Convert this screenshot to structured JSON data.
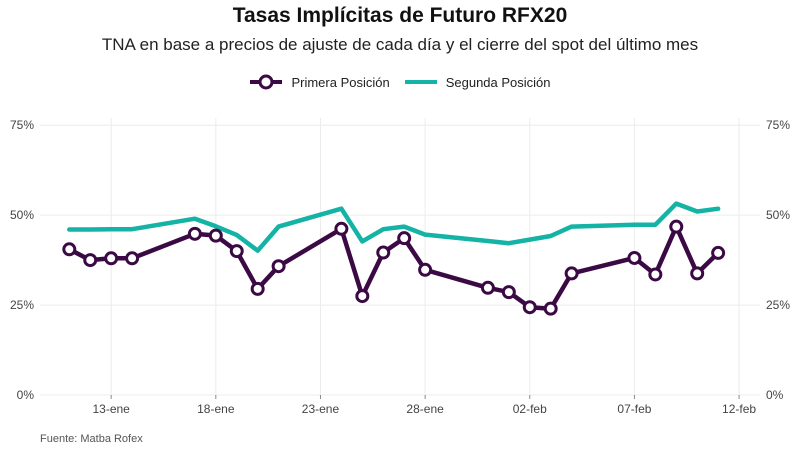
{
  "chart_data": {
    "type": "line",
    "title": "Tasas Implícitas de Futuro RFX20",
    "subtitle": "TNA en base a precios de ajuste de cada día y el cierre del spot del último mes",
    "caption": "Fuente: Matba Rofex",
    "xlabel": "",
    "ylabel": "",
    "x_ticks": [
      "13-ene",
      "18-ene",
      "23-ene",
      "28-ene",
      "02-feb",
      "07-feb",
      "12-feb"
    ],
    "x_tick_days": [
      13,
      18,
      23,
      28,
      33,
      38,
      43
    ],
    "y_ticks": [
      0,
      25,
      50,
      75
    ],
    "y_tick_labels": [
      "0%",
      "25%",
      "50%",
      "75%"
    ],
    "xlim": [
      9.6,
      44.0
    ],
    "ylim": [
      0,
      77
    ],
    "legend_position": "top",
    "grid": true,
    "series": [
      {
        "name": "Primera Posición",
        "color": "#3b0a45",
        "marker": "circle-open",
        "x": [
          11,
          12,
          13,
          14,
          17,
          18,
          19,
          20,
          21,
          24,
          25,
          26,
          27,
          28,
          31,
          32,
          33,
          34,
          35,
          38,
          39,
          40,
          41,
          42
        ],
        "values": [
          40.5,
          37.5,
          38,
          38,
          44.8,
          44.3,
          40.0,
          29.5,
          35.8,
          46.2,
          27.5,
          39.6,
          43.6,
          34.8,
          29.8,
          28.6,
          24.4,
          24.0,
          33.8,
          38.1,
          33.5,
          46.8,
          33.8,
          39.5
        ]
      },
      {
        "name": "Segunda Posición",
        "color": "#14b3a5",
        "marker": "none",
        "x": [
          11,
          12,
          13,
          14,
          17,
          18,
          19,
          20,
          21,
          24,
          25,
          26,
          27,
          28,
          31,
          32,
          33,
          34,
          35,
          38,
          39,
          40,
          41,
          42
        ],
        "values": [
          46.0,
          46.0,
          46.1,
          46.1,
          49.0,
          46.9,
          44.5,
          40.1,
          46.8,
          51.8,
          42.7,
          46.1,
          46.8,
          44.6,
          42.8,
          42.2,
          43.2,
          44.2,
          46.8,
          47.3,
          47.3,
          53.2,
          51.0,
          51.8
        ]
      }
    ]
  }
}
